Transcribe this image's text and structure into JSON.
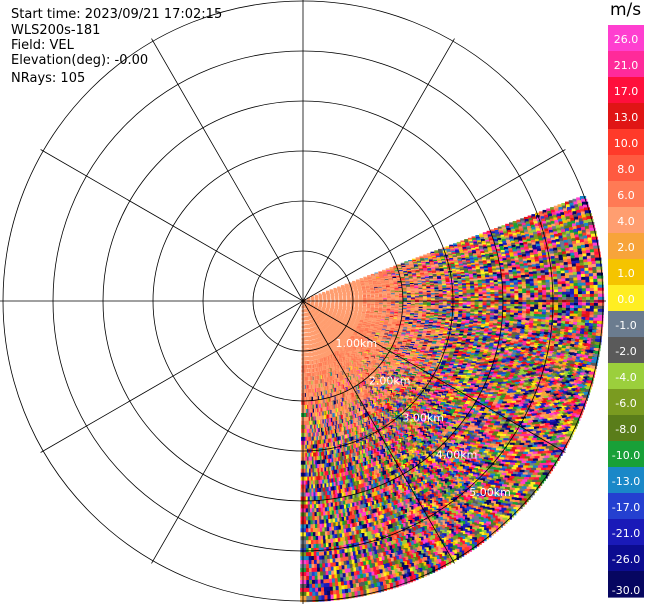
{
  "header": {
    "start_time": "Start time: 2023/09/21 17:02:15",
    "instrument": "WLS200s-181",
    "field": "Field: VEL",
    "elevation": "Elevation(deg): -0.00",
    "nrays": "NRays: 105"
  },
  "chart_data": {
    "type": "heatmap",
    "projection": "polar (PPI radar scan)",
    "field": "VEL",
    "units": "m/s",
    "range_rings_km": [
      1,
      2,
      3,
      4,
      5,
      6
    ],
    "range_labels": [
      "1.00km",
      "2.00km",
      "3.00km",
      "4.00km",
      "5.00km"
    ],
    "spokes_deg": [
      0,
      30,
      60,
      90,
      120,
      150,
      180,
      210,
      240,
      270,
      300,
      330
    ],
    "scan_sector_deg": [
      70,
      180
    ],
    "data_range_km": 6.0,
    "near_field_km": 2.0,
    "near_field_dominant_values": [
      4.0,
      6.0
    ],
    "far_field": "noise (mixed values across full colour scale)",
    "colorbar": {
      "title": "m/s",
      "levels": [
        "26.0",
        "21.0",
        "17.0",
        "13.0",
        "10.0",
        "8.0",
        "6.0",
        "4.0",
        "2.0",
        "1.0",
        "0.0",
        "-1.0",
        "-2.0",
        "-4.0",
        "-6.0",
        "-8.0",
        "-10.0",
        "-13.0",
        "-17.0",
        "-21.0",
        "-26.0",
        "-30.0"
      ],
      "colors": [
        "#ff3fd0",
        "#ff2a9a",
        "#ff0f3c",
        "#e01515",
        "#ff3a2a",
        "#ff5a40",
        "#ff7a55",
        "#ff9e70",
        "#f7a43a",
        "#f5c400",
        "#ffee22",
        "#6b7c8f",
        "#5a5a5a",
        "#9bcf3c",
        "#7a9b20",
        "#5a7d1a",
        "#18a038",
        "#1a88c8",
        "#2440d0",
        "#1a1ab8",
        "#0c0c90",
        "#060660"
      ]
    }
  }
}
